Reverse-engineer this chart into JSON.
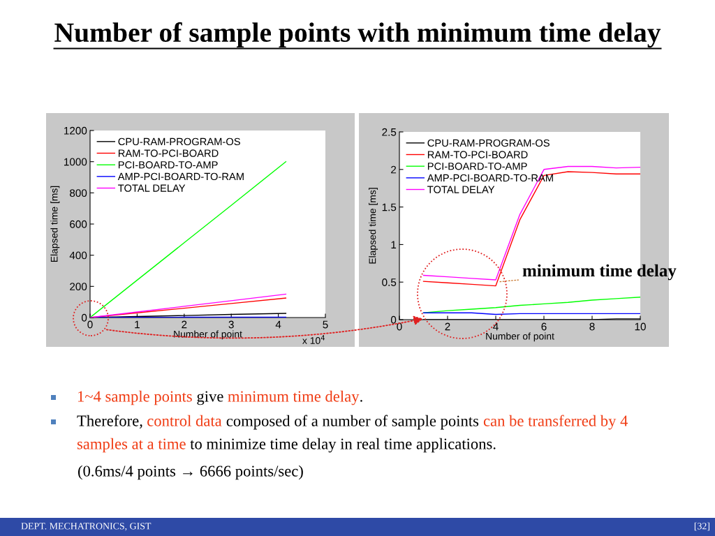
{
  "chart_data": [
    {
      "type": "line",
      "title": "Number of sample points with minimum time delay",
      "xlabel": "Number of point",
      "ylabel": "Elapsed time [ms]",
      "x": [
        0,
        1,
        2,
        3,
        4.16
      ],
      "series": [
        {
          "name": "CPU-RAM-PROGRAM-OS",
          "color": "#000000",
          "values": [
            0,
            7,
            13,
            20,
            27
          ]
        },
        {
          "name": "RAM-TO-PCI-BOARD",
          "color": "#ff0000",
          "values": [
            0,
            30,
            60,
            90,
            125
          ]
        },
        {
          "name": "PCI-BOARD-TO-AMP",
          "color": "#00ff00",
          "values": [
            0,
            240,
            480,
            720,
            1000
          ]
        },
        {
          "name": "AMP-PCI-BOARD-TO-RAM",
          "color": "#0000ff",
          "values": [
            0,
            1,
            2,
            2,
            3
          ]
        },
        {
          "name": "TOTAL DELAY",
          "color": "#ff00ff",
          "values": [
            0,
            36,
            72,
            108,
            150
          ]
        }
      ],
      "xlim": [
        0,
        5
      ],
      "xticks": [
        0,
        1,
        2,
        3,
        4,
        5
      ],
      "ylim": [
        0,
        1200
      ],
      "yticks": [
        0,
        200,
        400,
        600,
        800,
        1000,
        1200
      ],
      "legend": "top left",
      "annotations": [
        "x 10$^{4}$",
        "DEPT. MECHATRONICS, GIST",
        "[32]"
      ]
    },
    {
      "type": "line",
      "xlabel": "Number of point",
      "ylabel": "Elapsed time [ms]",
      "x": [
        1,
        2,
        3,
        4,
        5,
        6,
        7,
        8,
        9,
        10
      ],
      "series": [
        {
          "name": "CPU-RAM-PROGRAM-OS",
          "color": "#000000",
          "values": [
            0,
            0,
            0,
            0,
            0,
            0,
            0,
            0,
            0.01,
            0.01
          ]
        },
        {
          "name": "RAM-TO-PCI-BOARD",
          "color": "#ff0000",
          "values": [
            0.51,
            0.49,
            0.47,
            0.45,
            1.33,
            1.92,
            1.97,
            1.96,
            1.94,
            1.94
          ]
        },
        {
          "name": "PCI-BOARD-TO-AMP",
          "color": "#00ff00",
          "values": [
            0.09,
            0.12,
            0.14,
            0.16,
            0.19,
            0.21,
            0.23,
            0.26,
            0.28,
            0.3
          ]
        },
        {
          "name": "AMP-PCI-BOARD-TO-RAM",
          "color": "#0000ff",
          "values": [
            0.09,
            0.09,
            0.09,
            0.07,
            0.08,
            0.08,
            0.08,
            0.08,
            0.08,
            0.08
          ]
        },
        {
          "name": "TOTAL DELAY",
          "color": "#ff00ff",
          "values": [
            0.59,
            0.57,
            0.55,
            0.53,
            1.4,
            2.0,
            2.04,
            2.04,
            2.02,
            2.03
          ]
        }
      ],
      "xlim": [
        0,
        10
      ],
      "xticks": [
        0,
        2,
        4,
        6,
        8,
        10
      ],
      "ylim": [
        0,
        2.5
      ],
      "yticks": [
        0,
        0.5,
        1,
        1.5,
        2,
        2.5
      ],
      "legend": "top left",
      "annotations": [
        {
          "text": "minimum time delay",
          "x": 4,
          "y": 0.5
        },
        "1~4 sample points",
        " give ",
        "minimum time delay",
        ".",
        "Therefore, ",
        "control data",
        " composed of a number of sample points ",
        "can be transferred by 4",
        "samples at a time",
        " to minimize time delay in real time applications.",
        "(0.6ms/4 points → 6666 points/sec)"
      ]
    }
  ]
}
